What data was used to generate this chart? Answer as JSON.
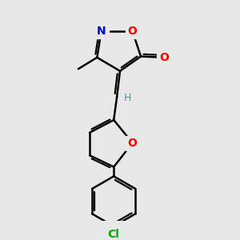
{
  "background_color": "#e8e8e8",
  "atoms": {
    "N": {
      "color": "#0000cc"
    },
    "O": {
      "color": "#ff0000"
    },
    "O_furan": {
      "color": "#ff0000"
    },
    "Cl": {
      "color": "#00aa00"
    },
    "H": {
      "color": "#4a9a9a"
    }
  },
  "bond_color": "#000000",
  "bond_width": 1.8,
  "fig_width": 3.0,
  "fig_height": 3.0,
  "dpi": 100
}
